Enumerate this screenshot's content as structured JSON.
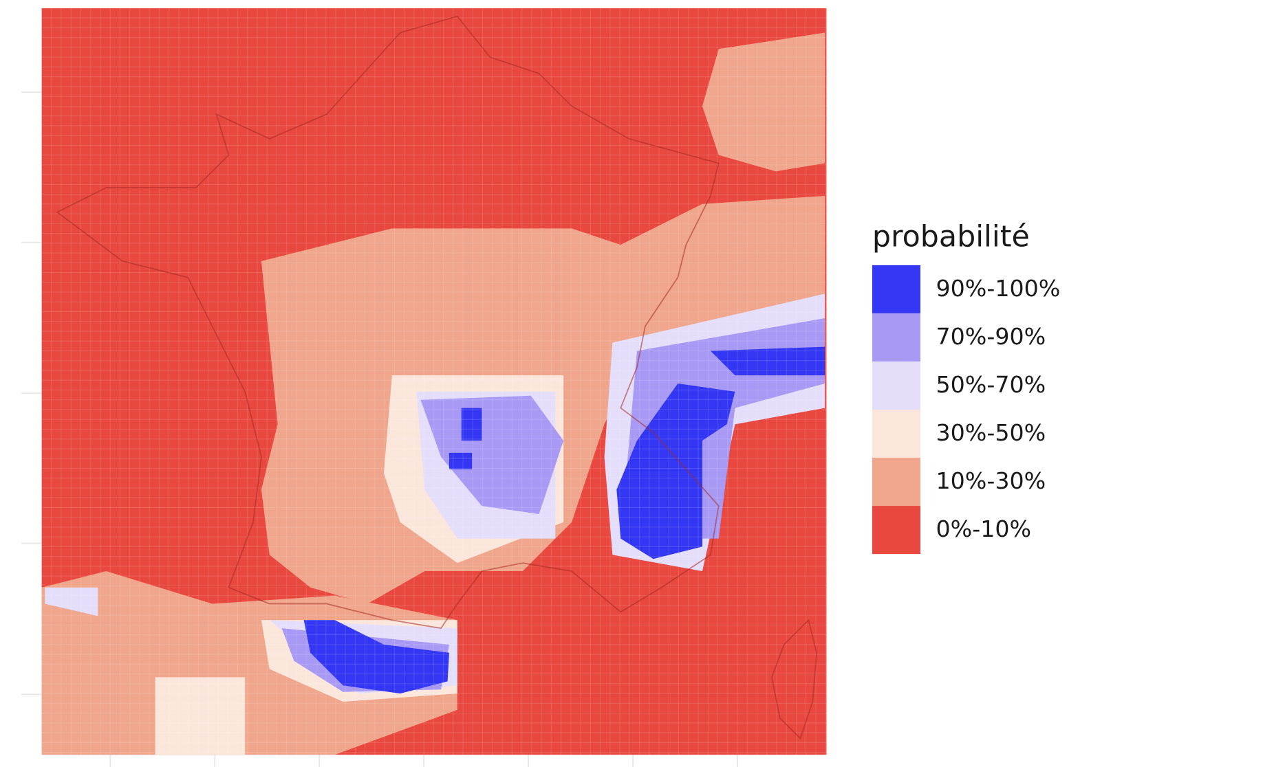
{
  "legend": {
    "title": "probabilité",
    "items": [
      {
        "label": "90%-100%",
        "color": "#3336f2"
      },
      {
        "label": "70%-90%",
        "color": "#a899f5"
      },
      {
        "label": "50%-70%",
        "color": "#e4defb"
      },
      {
        "label": "30%-50%",
        "color": "#fbe6dc"
      },
      {
        "label": "10%-30%",
        "color": "#f0a68c"
      },
      {
        "label": "0%-10%",
        "color": "#e8483f"
      }
    ]
  }
}
